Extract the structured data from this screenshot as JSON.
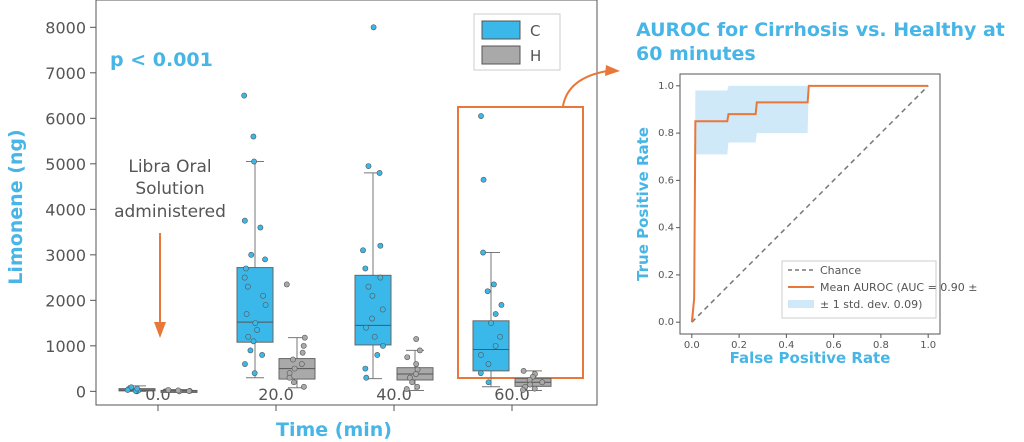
{
  "colors": {
    "blue": "#3bb8ea",
    "gray": "#a9a9a9",
    "orange": "#e8773a",
    "axis_label": "#47b6e6",
    "text": "#555555",
    "roc_band": "#cfe9f8"
  },
  "main": {
    "pvalue": "p < 0.001",
    "annotation": [
      "Libra Oral",
      "Solution",
      "administered"
    ],
    "legend": [
      {
        "key": "C",
        "color": "#3bb8ea"
      },
      {
        "key": "H",
        "color": "#a9a9a9"
      }
    ]
  },
  "roc": {
    "title_line1": "AUROC for Cirrhosis vs. Healthy at",
    "title_line2": "60 minutes",
    "legend_chance": "Chance",
    "legend_mean_line1": "Mean AUROC (AUC = 0.90 ±",
    "legend_mean_line2": "± 1 std. dev. 0.09)"
  },
  "chart_data": [
    {
      "type": "box",
      "xlabel": "Time (min)",
      "ylabel": "Limonene (ng)",
      "ylim": [
        -300,
        8600
      ],
      "yticks": [
        0,
        1000,
        2000,
        3000,
        4000,
        5000,
        6000,
        7000,
        8000
      ],
      "categories": [
        "0.0",
        "20.0",
        "40.0",
        "60.0"
      ],
      "series": [
        {
          "name": "C",
          "boxes": [
            {
              "whislo": 0,
              "q1": 10,
              "med": 30,
              "q3": 60,
              "whishi": 120
            },
            {
              "whislo": 300,
              "q1": 1080,
              "med": 1520,
              "q3": 2720,
              "whishi": 5050
            },
            {
              "whislo": 280,
              "q1": 1020,
              "med": 1450,
              "q3": 2550,
              "whishi": 4800
            },
            {
              "whislo": 100,
              "q1": 450,
              "med": 920,
              "q3": 1550,
              "whishi": 3050
            }
          ],
          "points": [
            [
              0,
              20,
              50,
              90,
              10,
              60,
              30
            ],
            [
              6500,
              5600,
              5050,
              3750,
              3600,
              3000,
              2900,
              2700,
              2500,
              2300,
              2100,
              1900,
              1700,
              1500,
              1350,
              1200,
              1100,
              900,
              800,
              600,
              400
            ],
            [
              8000,
              4950,
              4800,
              3200,
              3100,
              2700,
              2500,
              2300,
              2100,
              1800,
              1600,
              1400,
              1200,
              1000,
              800,
              500,
              300
            ],
            [
              6050,
              4650,
              3050,
              2350,
              2200,
              1900,
              1700,
              1500,
              1200,
              1000,
              800,
              600,
              400,
              200
            ]
          ]
        },
        {
          "name": "H",
          "boxes": [
            {
              "whislo": 0,
              "q1": 0,
              "med": 5,
              "q3": 20,
              "whishi": 40
            },
            {
              "whislo": 80,
              "q1": 270,
              "med": 500,
              "q3": 720,
              "whishi": 1180
            },
            {
              "whislo": 20,
              "q1": 250,
              "med": 380,
              "q3": 520,
              "whishi": 900
            },
            {
              "whislo": 20,
              "q1": 110,
              "med": 200,
              "q3": 280,
              "whishi": 450
            }
          ],
          "points": [
            [
              0,
              10,
              20,
              5,
              30
            ],
            [
              2350,
              1180,
              1000,
              850,
              700,
              600,
              500,
              400,
              300,
              200,
              100
            ],
            [
              1150,
              900,
              750,
              600,
              480,
              380,
              300,
              200,
              100,
              50
            ],
            [
              450,
              380,
              320,
              250,
              200,
              150,
              100,
              60,
              30
            ]
          ]
        }
      ]
    },
    {
      "type": "line",
      "title": "AUROC for Cirrhosis vs. Healthy at 60 minutes",
      "xlabel": "False Positive Rate",
      "ylabel": "True Positive Rate",
      "xlim": [
        -0.05,
        1.05
      ],
      "ylim": [
        -0.05,
        1.05
      ],
      "ticks": [
        "0.0",
        "0.2",
        "0.4",
        "0.6",
        "0.8",
        "1.0"
      ],
      "series": [
        {
          "name": "Chance",
          "x": [
            0,
            1
          ],
          "y": [
            0,
            1
          ]
        },
        {
          "name": "Mean AUROC (AUC = 0.90 ± ± 1 std. dev. 0.09)",
          "x": [
            0,
            0.01,
            0.015,
            0.15,
            0.155,
            0.27,
            0.275,
            0.49,
            0.495,
            1.0
          ],
          "y": [
            0,
            0.1,
            0.85,
            0.85,
            0.88,
            0.88,
            0.93,
            0.93,
            1.0,
            1.0
          ]
        }
      ],
      "band": {
        "x": [
          0,
          0.01,
          0.015,
          0.15,
          0.155,
          0.27,
          0.275,
          0.49,
          0.495,
          1.0
        ],
        "upper": [
          0,
          0.2,
          0.98,
          0.98,
          1.0,
          1.0,
          1.0,
          1.0,
          1.0,
          1.0
        ],
        "lower": [
          0,
          0.0,
          0.71,
          0.71,
          0.76,
          0.76,
          0.8,
          0.8,
          1.0,
          1.0
        ]
      },
      "legend_position": "lower-right"
    }
  ]
}
